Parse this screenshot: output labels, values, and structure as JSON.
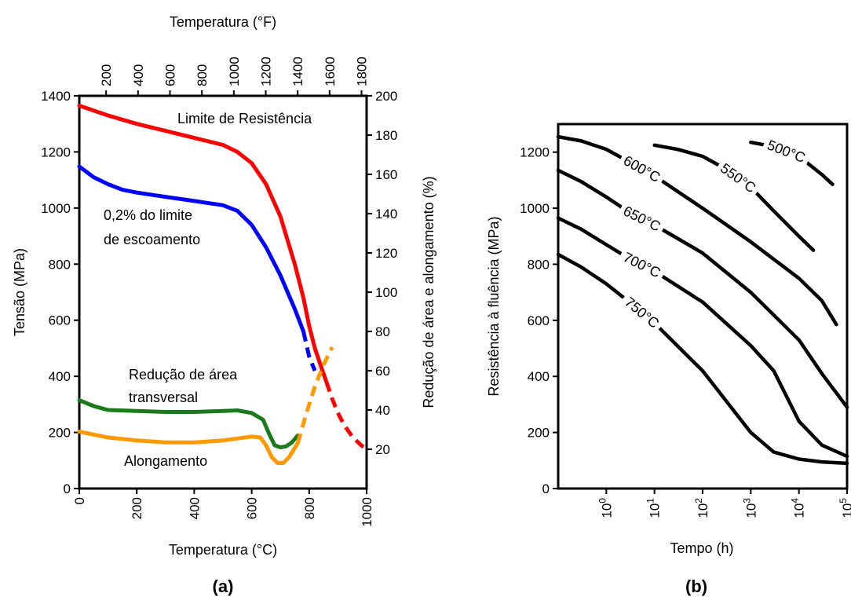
{
  "chart_data": [
    {
      "type": "line",
      "panel_label": "(a)",
      "xlabel": "Temperatura (°C)",
      "x2label": "Temperatura (°F)",
      "ylabel": "Tensão (MPa)",
      "y2label": "Redução de área e alongamento (%)",
      "xlim": [
        0,
        1000
      ],
      "ylim": [
        0,
        1400
      ],
      "y2lim": [
        0,
        200
      ],
      "x_ticks": [
        "0",
        "200",
        "400",
        "600",
        "800",
        "1000"
      ],
      "x2_ticks": [
        "200",
        "400",
        "600",
        "800",
        "1000",
        "1200",
        "1400",
        "1600",
        "1800"
      ],
      "y_ticks": [
        "0",
        "200",
        "400",
        "600",
        "800",
        "1000",
        "1200",
        "1400"
      ],
      "y2_ticks": [
        "20",
        "40",
        "60",
        "80",
        "100",
        "120",
        "140",
        "160",
        "180",
        "200"
      ],
      "series": [
        {
          "name": "Limite de Resistência",
          "axis": "left",
          "color": "#ff0000",
          "x": [
            0,
            100,
            200,
            300,
            400,
            500,
            550,
            600,
            650,
            700,
            750,
            780,
            800,
            820,
            840,
            860
          ],
          "values": [
            1365,
            1330,
            1300,
            1275,
            1250,
            1225,
            1200,
            1160,
            1085,
            970,
            800,
            680,
            580,
            500,
            440,
            380
          ],
          "dashed_x": [
            860,
            880,
            900,
            920,
            950,
            980,
            1000
          ],
          "dashed_values": [
            380,
            320,
            270,
            230,
            185,
            155,
            140
          ]
        },
        {
          "name": "0,2% do limite de escoamento",
          "axis": "left",
          "color": "#0000ff",
          "x": [
            0,
            50,
            100,
            150,
            200,
            300,
            400,
            500,
            550,
            600,
            650,
            700,
            750,
            780
          ],
          "values": [
            1148,
            1110,
            1085,
            1065,
            1055,
            1040,
            1025,
            1010,
            990,
            940,
            860,
            760,
            640,
            560
          ],
          "dashed_x": [
            780,
            800,
            820
          ],
          "dashed_values": [
            560,
            470,
            420
          ]
        },
        {
          "name": "Redução de área transversal",
          "axis": "right",
          "color": "#1b7a1b",
          "x": [
            0,
            50,
            100,
            200,
            300,
            400,
            500,
            550,
            600,
            640,
            660,
            680,
            700,
            720,
            740,
            760
          ],
          "values": [
            45,
            42,
            40,
            39.5,
            39,
            39,
            39.5,
            39.8,
            38.5,
            35,
            28,
            22,
            21,
            21.5,
            23.5,
            27
          ]
        },
        {
          "name": "Alongamento",
          "axis": "right",
          "color": "#ff9900",
          "x": [
            0,
            50,
            100,
            200,
            300,
            400,
            500,
            550,
            600,
            630,
            650,
            670,
            690,
            710,
            730,
            760
          ],
          "values": [
            29,
            27.5,
            26,
            24.5,
            23.5,
            23.5,
            24.5,
            25.5,
            26.5,
            26,
            22,
            16,
            13,
            13,
            16,
            23
          ],
          "dashed_x": [
            760,
            790,
            820,
            850,
            880
          ],
          "dashed_values": [
            23,
            38,
            52,
            63,
            72
          ]
        }
      ],
      "annotations": {
        "uts": "Limite de Resistência",
        "ys1": "0,2% do limite",
        "ys2": "de escoamento",
        "ra1": "Redução de área",
        "ra2": "transversal",
        "el": "Alongamento"
      }
    },
    {
      "type": "line",
      "panel_label": "(b)",
      "xlabel": "Tempo (h)",
      "ylabel": "Resistência à fluência (MPa)",
      "x_scale": "log",
      "xlim": [
        0.1,
        100000
      ],
      "ylim": [
        0,
        1300
      ],
      "x_ticks_exponents": [
        "0",
        "1",
        "2",
        "3",
        "4",
        "5"
      ],
      "x_ticks_base": "10",
      "y_ticks": [
        "0",
        "200",
        "400",
        "600",
        "800",
        "1000",
        "1200"
      ],
      "color": "#000000",
      "series": [
        {
          "name": "500°C",
          "x": [
            1000,
            3000,
            10000,
            30000,
            50000
          ],
          "values": [
            1235,
            1220,
            1185,
            1120,
            1085
          ]
        },
        {
          "name": "550°C",
          "x": [
            10,
            30,
            100,
            300,
            1000,
            3000,
            10000,
            20000
          ],
          "values": [
            1225,
            1210,
            1185,
            1140,
            1075,
            990,
            900,
            850
          ]
        },
        {
          "name": "600°C",
          "x": [
            0.1,
            0.3,
            1,
            3,
            10,
            100,
            1000,
            10000,
            30000,
            60000
          ],
          "values": [
            1255,
            1240,
            1210,
            1165,
            1115,
            1000,
            880,
            750,
            670,
            585
          ]
        },
        {
          "name": "650°C",
          "x": [
            0.1,
            0.3,
            1,
            3,
            10,
            100,
            1000,
            10000,
            30000,
            100000
          ],
          "values": [
            1135,
            1095,
            1040,
            985,
            940,
            840,
            700,
            530,
            410,
            290
          ]
        },
        {
          "name": "700°C",
          "x": [
            0.1,
            0.3,
            1,
            3,
            10,
            100,
            1000,
            3000,
            10000,
            30000,
            100000
          ],
          "values": [
            965,
            925,
            870,
            820,
            775,
            665,
            510,
            420,
            240,
            155,
            115
          ]
        },
        {
          "name": "750°C",
          "x": [
            0.1,
            0.3,
            1,
            3,
            10,
            100,
            1000,
            3000,
            10000,
            30000,
            100000
          ],
          "values": [
            835,
            790,
            730,
            665,
            590,
            420,
            200,
            130,
            105,
            95,
            90
          ]
        }
      ]
    }
  ]
}
